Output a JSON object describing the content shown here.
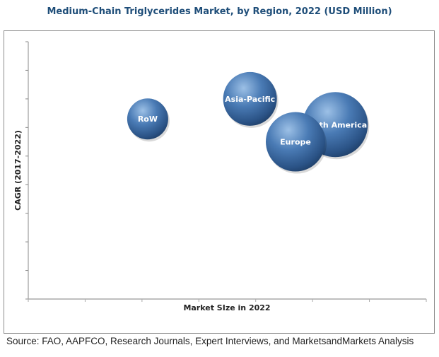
{
  "chart_data": {
    "type": "bubble",
    "title": "Medium-Chain Triglycerides Market, by Region, 2022 (USD Million)",
    "xlabel": "Market SIze in 2022",
    "ylabel": "CAGR (2017-2022)",
    "xlim": [
      0,
      7
    ],
    "ylim": [
      0,
      9
    ],
    "x_ticks": 7,
    "y_ticks": 9,
    "grid": false,
    "bubble_color": "#3a6aa0",
    "series": [
      {
        "name": "RoW",
        "x": 2.1,
        "y": 6.3,
        "size": 29
      },
      {
        "name": "Asia-Pacific",
        "x": 3.9,
        "y": 7.0,
        "size": 38
      },
      {
        "name": "North America",
        "x": 5.4,
        "y": 6.1,
        "size": 46
      },
      {
        "name": "Europe",
        "x": 4.7,
        "y": 5.5,
        "size": 42
      }
    ]
  },
  "source": "Source: FAO, AAPFCO, Research Journals, Expert Interviews, and MarketsandMarkets Analysis"
}
